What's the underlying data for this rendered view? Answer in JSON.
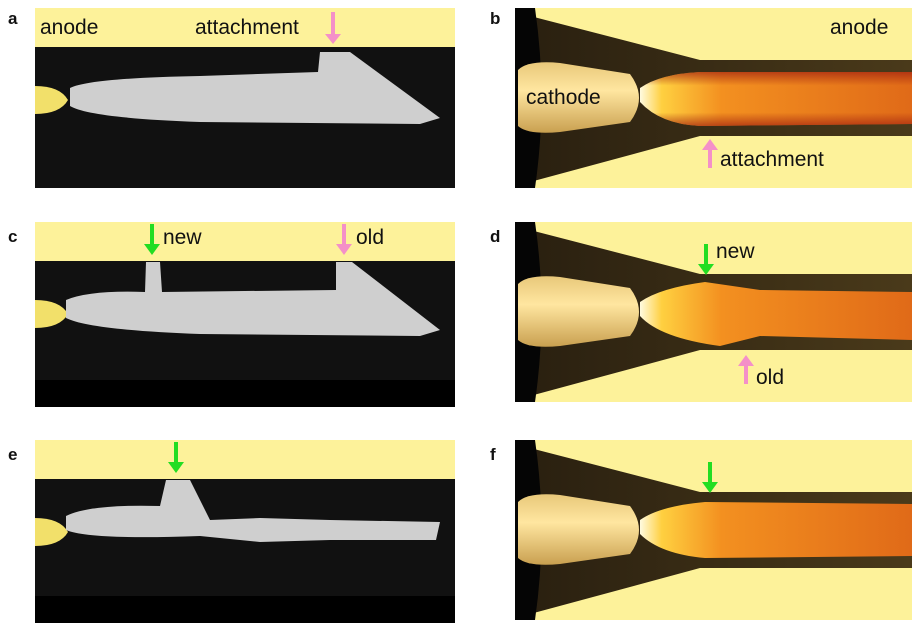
{
  "panels": [
    {
      "letter": "a",
      "labels": [
        "anode",
        "attachment"
      ]
    },
    {
      "letter": "b",
      "labels": [
        "anode",
        "cathode",
        "attachment"
      ]
    },
    {
      "letter": "c",
      "labels": [
        "new",
        "old"
      ]
    },
    {
      "letter": "d",
      "labels": [
        "new",
        "old"
      ]
    },
    {
      "letter": "e"
    },
    {
      "letter": "f"
    }
  ]
}
